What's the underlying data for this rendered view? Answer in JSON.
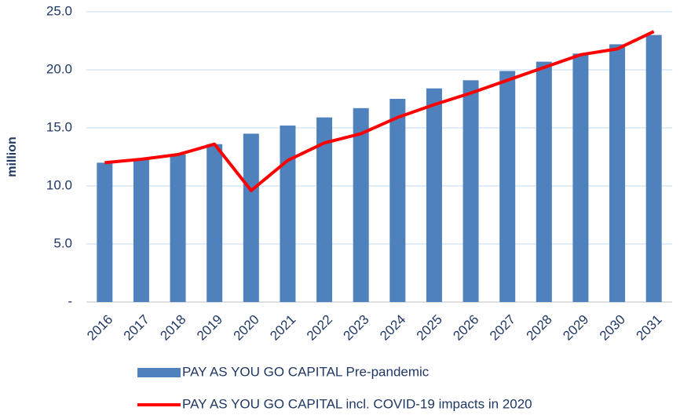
{
  "chart_data": {
    "type": "bar",
    "y_label": "million",
    "categories": [
      "2016",
      "2017",
      "2018",
      "2019",
      "2020",
      "2021",
      "2022",
      "2023",
      "2024",
      "2025",
      "2026",
      "2027",
      "2028",
      "2029",
      "2030",
      "2031"
    ],
    "series": [
      {
        "name": "PAY AS YOU GO CAPITAL Pre-pandemic",
        "type": "bar",
        "color": "#4f81bd",
        "values": [
          12.0,
          12.3,
          12.7,
          13.6,
          14.5,
          15.2,
          15.9,
          16.7,
          17.5,
          18.4,
          19.1,
          19.9,
          20.7,
          21.4,
          22.2,
          23.0
        ]
      },
      {
        "name": "PAY AS YOU GO CAPITAL incl. COVID-19 impacts in 2020",
        "type": "line",
        "color": "#ff0000",
        "values": [
          12.0,
          12.3,
          12.7,
          13.6,
          9.6,
          12.2,
          13.7,
          14.5,
          15.9,
          17.0,
          18.0,
          19.1,
          20.2,
          21.3,
          21.8,
          23.3
        ]
      }
    ],
    "ylim": [
      0,
      25
    ],
    "yticks": [
      {
        "value": 0,
        "label": "-"
      },
      {
        "value": 5,
        "label": "5.0"
      },
      {
        "value": 10,
        "label": "10.0"
      },
      {
        "value": 15,
        "label": "15.0"
      },
      {
        "value": 20,
        "label": "20.0"
      },
      {
        "value": 25,
        "label": "25.0"
      }
    ],
    "grid": true
  }
}
